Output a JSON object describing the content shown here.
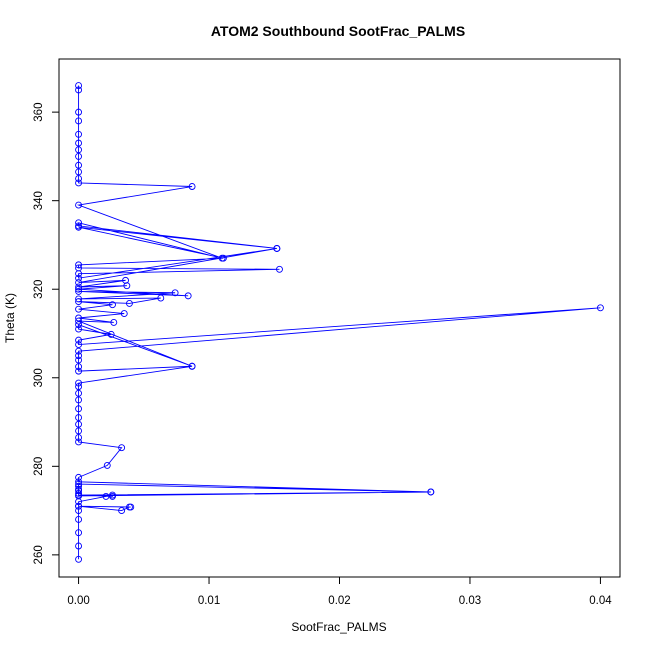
{
  "chart_data": {
    "type": "line",
    "title": "ATOM2 Southbound SootFrac_PALMS",
    "xlabel": "SootFrac_PALMS",
    "ylabel": "Theta (K)",
    "xlim": [
      -0.0015,
      0.0415
    ],
    "ylim": [
      255,
      372
    ],
    "xticks": [
      0.0,
      0.01,
      0.02,
      0.03,
      0.04
    ],
    "xtick_labels": [
      "0.00",
      "0.01",
      "0.02",
      "0.03",
      "0.04"
    ],
    "yticks": [
      260,
      280,
      300,
      320,
      340,
      360
    ],
    "ytick_labels": [
      "260",
      "280",
      "300",
      "320",
      "340",
      "360"
    ],
    "grid": false,
    "markers": "open-circle",
    "series": [
      {
        "color": "#0000ff",
        "points": [
          [
            0,
            259
          ],
          [
            0,
            262
          ],
          [
            0,
            265
          ],
          [
            0,
            268
          ],
          [
            0,
            270
          ],
          [
            0,
            271
          ],
          [
            0.004,
            270.8
          ],
          [
            0.0039,
            270.8
          ],
          [
            0.0033,
            270
          ],
          [
            0,
            271
          ],
          [
            0,
            272
          ],
          [
            0.0021,
            273.2
          ],
          [
            0.0026,
            273.5
          ],
          [
            0.0026,
            273.2
          ],
          [
            0,
            273.5
          ],
          [
            0.027,
            274.2
          ],
          [
            0,
            273.3
          ],
          [
            0,
            273.9
          ],
          [
            0,
            274.5
          ],
          [
            0,
            274.8
          ],
          [
            0,
            275.5
          ],
          [
            0,
            276
          ],
          [
            0.027,
            274.2
          ],
          [
            0,
            276.5
          ],
          [
            0,
            277.5
          ],
          [
            0.0022,
            280.2
          ],
          [
            0.0033,
            284.2
          ],
          [
            0,
            285.5
          ],
          [
            0,
            286.5
          ],
          [
            0,
            288
          ],
          [
            0,
            289.5
          ],
          [
            0,
            291
          ],
          [
            0,
            293
          ],
          [
            0,
            295
          ],
          [
            0,
            296.5
          ],
          [
            0,
            298
          ],
          [
            0,
            298.8
          ],
          [
            0.0087,
            302.6
          ],
          [
            0,
            301.5
          ],
          [
            0,
            302.5
          ],
          [
            0,
            304
          ],
          [
            0,
            305
          ],
          [
            0,
            306
          ],
          [
            0.04,
            315.8
          ],
          [
            0,
            307.5
          ],
          [
            0,
            308.5
          ],
          [
            0.0025,
            309.8
          ],
          [
            0,
            311
          ],
          [
            0,
            312
          ],
          [
            0.0087,
            302.6
          ],
          [
            0,
            312.8
          ],
          [
            0.0027,
            312.5
          ],
          [
            0,
            313.5
          ],
          [
            0.0035,
            314.5
          ],
          [
            0,
            315.5
          ],
          [
            0.0026,
            316.5
          ],
          [
            0,
            317.2
          ],
          [
            0.0039,
            316.8
          ],
          [
            0.0063,
            318
          ],
          [
            0,
            317.8
          ],
          [
            0.0074,
            319.2
          ],
          [
            0,
            319.5
          ],
          [
            0.0084,
            318.5
          ],
          [
            0,
            320
          ],
          [
            0.0037,
            320.8
          ],
          [
            0,
            320.5
          ],
          [
            0.0036,
            322
          ],
          [
            0,
            321.5
          ],
          [
            0.0152,
            329.2
          ],
          [
            0,
            322.5
          ],
          [
            0,
            323.5
          ],
          [
            0.0154,
            324.5
          ],
          [
            0,
            324.8
          ],
          [
            0,
            325.5
          ],
          [
            0.0111,
            327
          ],
          [
            0,
            334
          ],
          [
            0.0152,
            329.2
          ],
          [
            0,
            334.3
          ],
          [
            0,
            335
          ],
          [
            0.011,
            327
          ],
          [
            0,
            339
          ],
          [
            0.0087,
            343.2
          ],
          [
            0,
            344
          ],
          [
            0,
            345
          ],
          [
            0,
            346.5
          ],
          [
            0,
            348
          ],
          [
            0,
            350
          ],
          [
            0,
            351.5
          ],
          [
            0,
            353
          ],
          [
            0,
            355
          ],
          [
            0,
            358
          ],
          [
            0,
            360
          ],
          [
            0,
            365
          ],
          [
            0,
            366
          ]
        ]
      }
    ]
  }
}
